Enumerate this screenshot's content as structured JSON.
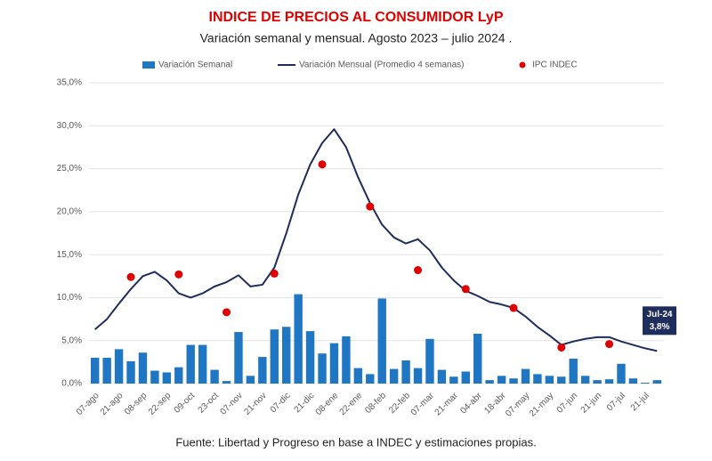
{
  "chart_data": {
    "type": "combo",
    "title": "INDICE DE PRECIOS AL   CONSUMIDOR LyP",
    "subtitle": "Variación   semanal y   mensual.  Agosto 2023   – julio 2024  .",
    "source": "Fuente:  Libertad y Progreso     en base a INDEC y estimaciones propias.",
    "categories": [
      "07-ago",
      null,
      "21-ago",
      null,
      "08-sep",
      null,
      "22-sep",
      null,
      "09-oct",
      null,
      "23-oct",
      null,
      "07-nov",
      null,
      "21-nov",
      null,
      "07-dic",
      null,
      "21-dic",
      null,
      "08-ene",
      null,
      "22-ene",
      null,
      "08-feb",
      null,
      "22-feb",
      null,
      "07-mar",
      null,
      "21-mar",
      null,
      "04-abr",
      null,
      "18-abr",
      null,
      "07-may",
      null,
      "21-may",
      null,
      "07-jun",
      null,
      "21-jun",
      null,
      "07-jul",
      null,
      "21-jul",
      null
    ],
    "series": [
      {
        "name": "Variación Semanal",
        "type": "bar",
        "color": "#1f77c4",
        "values": [
          3.0,
          3.0,
          4.0,
          2.6,
          3.6,
          1.5,
          1.3,
          1.9,
          4.5,
          4.5,
          1.6,
          0.3,
          6.0,
          0.9,
          3.1,
          6.3,
          6.6,
          10.4,
          6.1,
          3.5,
          4.7,
          5.5,
          1.8,
          1.1,
          9.9,
          1.7,
          2.7,
          1.8,
          5.2,
          1.6,
          0.8,
          1.4,
          5.8,
          0.4,
          0.9,
          0.6,
          1.7,
          1.1,
          0.9,
          0.8,
          2.9,
          0.9,
          0.4,
          0.5,
          2.3,
          0.6,
          0.1,
          0.4
        ]
      },
      {
        "name": "Variación Mensual (Promedio 4 semanas)",
        "type": "line",
        "color": "#1f2d5c",
        "values": [
          6.3,
          7.5,
          9.3,
          11,
          12.5,
          13,
          12,
          10.5,
          10,
          10.5,
          11.3,
          11.8,
          12.6,
          11.3,
          11.5,
          13.5,
          17.5,
          22,
          25.5,
          28,
          29.6,
          27.5,
          24,
          21,
          18.5,
          17,
          16.3,
          16.8,
          15.5,
          13.5,
          12,
          10.8,
          10.2,
          9.5,
          9.2,
          8.8,
          7.8,
          6.6,
          5.6,
          4.5,
          4.9,
          5.2,
          5.4,
          5.4,
          4.9,
          4.5,
          4.1,
          3.8
        ]
      },
      {
        "name": "IPC INDEC",
        "type": "scatter",
        "color": "#e00000",
        "values": [
          null,
          null,
          null,
          12.4,
          null,
          null,
          null,
          12.7,
          null,
          null,
          null,
          8.3,
          null,
          null,
          null,
          12.8,
          null,
          null,
          null,
          25.5,
          null,
          null,
          null,
          20.6,
          null,
          null,
          null,
          13.2,
          null,
          null,
          null,
          11.0,
          null,
          null,
          null,
          8.8,
          null,
          null,
          null,
          4.2,
          null,
          null,
          null,
          4.6,
          null,
          null,
          null,
          null
        ]
      }
    ],
    "annotation": {
      "title": "Jul-24",
      "label": "3,8%",
      "value": 3.8
    },
    "ylim": [
      0,
      35
    ],
    "yticks": [
      {
        "value": 0,
        "label": "0,0%"
      },
      {
        "value": 5,
        "label": "5,0%"
      },
      {
        "value": 10,
        "label": "10,0%"
      },
      {
        "value": 15,
        "label": "15,0%"
      },
      {
        "value": 20,
        "label": "20,0%"
      },
      {
        "value": 25,
        "label": "25,0%"
      },
      {
        "value": 30,
        "label": "30,0%"
      },
      {
        "value": 35,
        "label": "35,0%"
      }
    ],
    "grid": true,
    "legend": "top"
  }
}
